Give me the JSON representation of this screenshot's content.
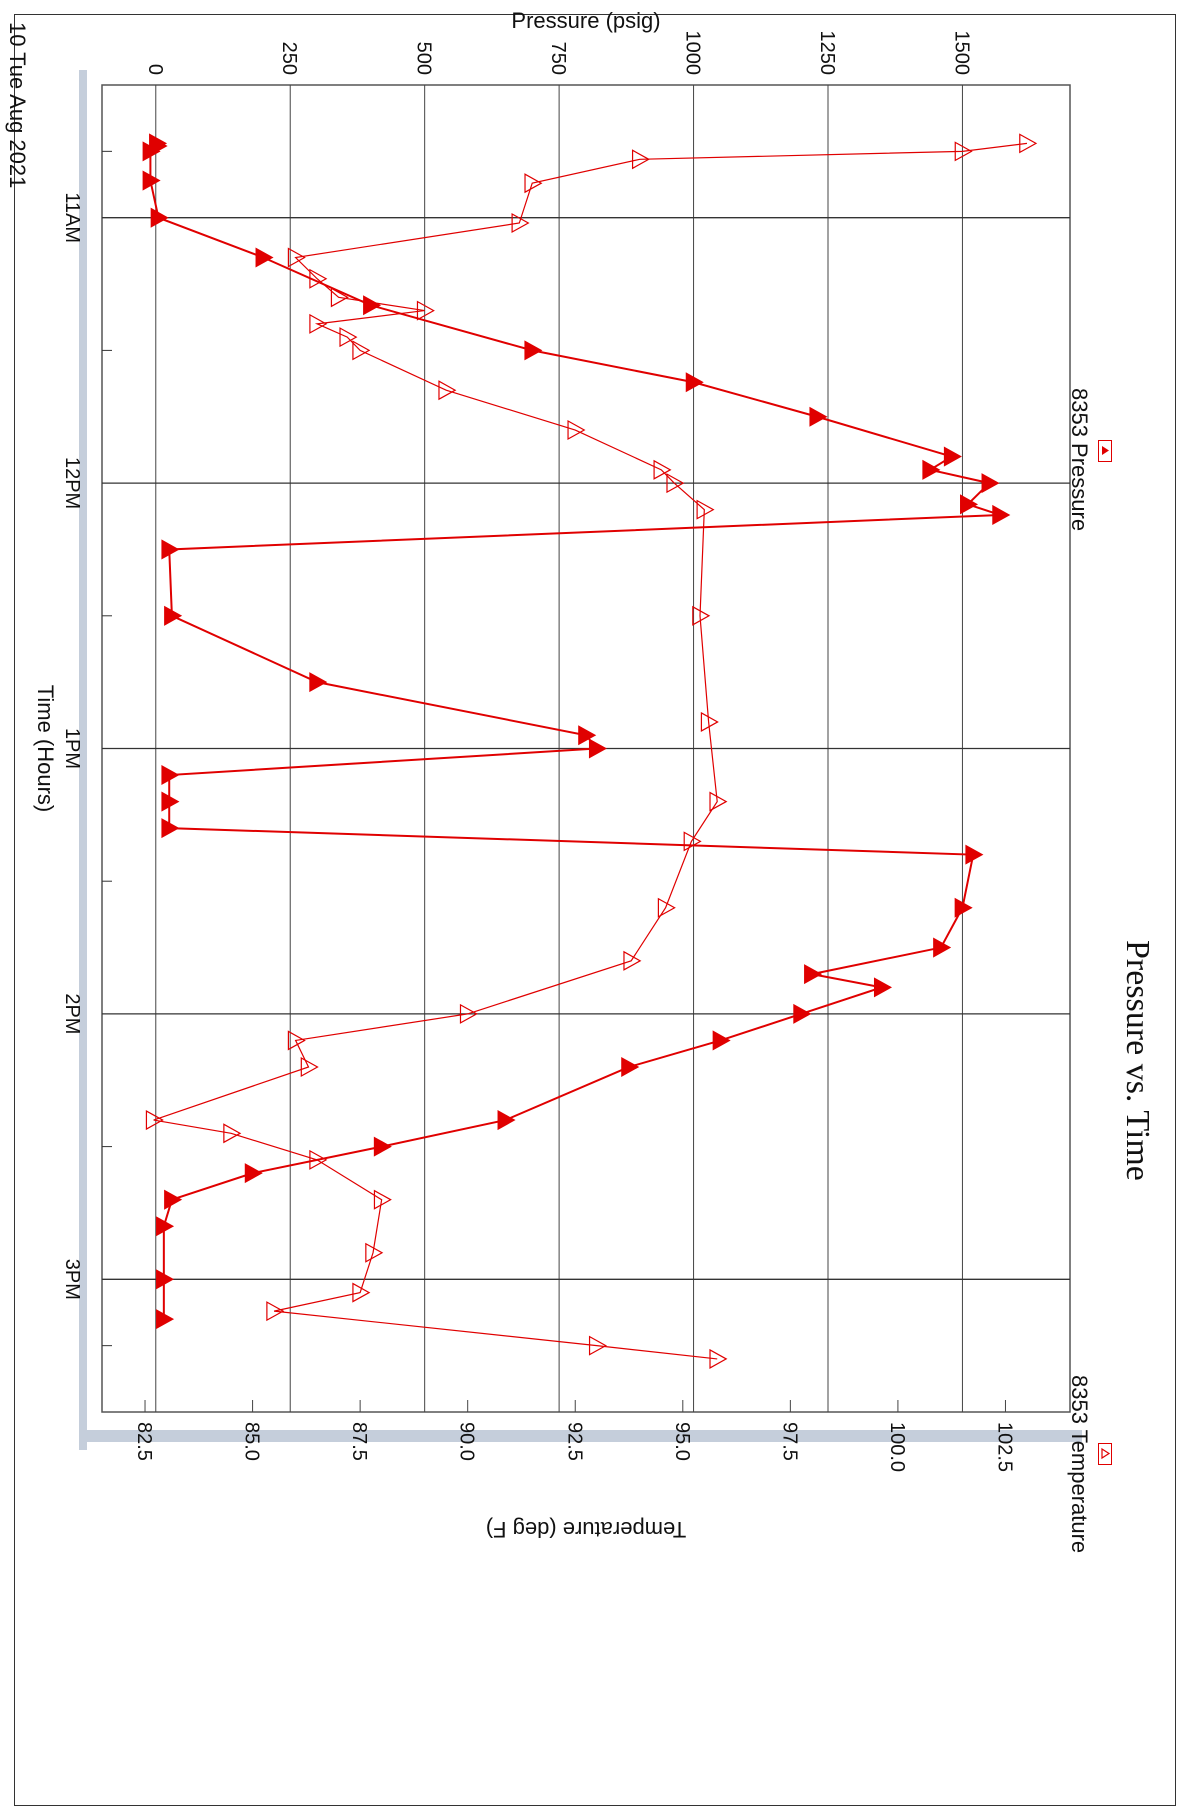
{
  "chart_data": {
    "type": "line",
    "title": "Pressure vs. Time",
    "date_label": "10 Tue Aug 2021",
    "xlabel": "Time (Hours)",
    "ylabel_left": "Pressure (psig)",
    "ylabel_right": "Temperature (deg F)",
    "x_ticks": [
      "11AM",
      "12PM",
      "1PM",
      "2PM",
      "3PM"
    ],
    "x_range_hours": [
      10.5,
      15.5
    ],
    "y_left": {
      "range": [
        -100,
        1700
      ],
      "ticks": [
        0,
        250,
        500,
        750,
        1000,
        1250,
        1500
      ]
    },
    "y_right": {
      "range": [
        81.5,
        104.0
      ],
      "ticks": [
        "82.5",
        "85.0",
        "87.5",
        "90.0",
        "92.5",
        "95.0",
        "97.5",
        "100.0",
        "102.5"
      ]
    },
    "grid": true,
    "legend_position": "top",
    "series": [
      {
        "name": "8353 Pressure",
        "axis": "left",
        "marker": "filled-triangle",
        "color": "#e00000",
        "x": [
          10.72,
          10.73,
          10.75,
          10.86,
          11.0,
          11.15,
          11.33,
          11.5,
          11.62,
          11.75,
          11.9,
          11.95,
          12.0,
          12.08,
          12.12,
          12.25,
          12.5,
          12.75,
          12.95,
          13.0,
          13.1,
          13.2,
          13.3,
          13.4,
          13.6,
          13.75,
          13.85,
          13.9,
          14.0,
          14.1,
          14.2,
          14.4,
          14.5,
          14.6,
          14.7,
          14.8,
          15.0,
          15.15
        ],
        "y": [
          2,
          3,
          -10,
          -10,
          5,
          200,
          400,
          700,
          1000,
          1230,
          1480,
          1440,
          1550,
          1510,
          1570,
          25,
          30,
          300,
          800,
          820,
          25,
          25,
          25,
          1520,
          1500,
          1460,
          1220,
          1350,
          1200,
          1050,
          880,
          650,
          420,
          180,
          30,
          15,
          15,
          15
        ]
      },
      {
        "name": "8353 Temperature",
        "axis": "right",
        "marker": "open-triangle",
        "color": "#e00000",
        "x": [
          10.72,
          10.75,
          10.78,
          10.87,
          11.02,
          11.15,
          11.23,
          11.3,
          11.35,
          11.4,
          11.45,
          11.5,
          11.65,
          11.8,
          11.95,
          12.0,
          12.1,
          12.5,
          12.9,
          13.2,
          13.35,
          13.6,
          13.8,
          14.0,
          14.1,
          14.2,
          14.4,
          14.45,
          14.55,
          14.7,
          14.9,
          15.05,
          15.12,
          15.25,
          15.3
        ],
        "y": [
          103.0,
          101.5,
          94.0,
          91.5,
          91.2,
          86.0,
          86.5,
          87.0,
          89.0,
          86.5,
          87.2,
          87.5,
          89.5,
          92.5,
          94.5,
          94.8,
          95.5,
          95.4,
          95.6,
          95.8,
          95.2,
          94.6,
          93.8,
          90.0,
          86.0,
          86.3,
          82.7,
          84.5,
          86.5,
          88.0,
          87.8,
          87.5,
          85.5,
          93.0,
          95.8
        ]
      }
    ]
  }
}
